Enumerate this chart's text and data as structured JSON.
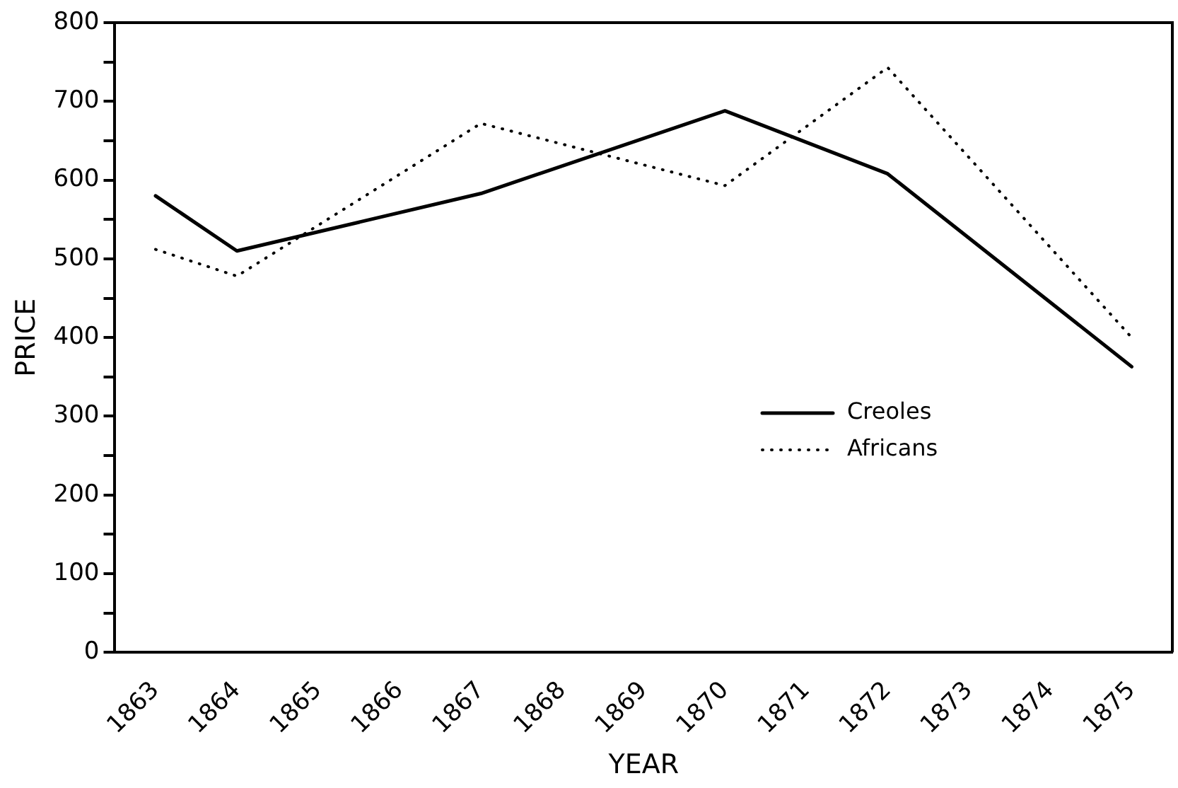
{
  "chart_data": {
    "type": "line",
    "xlabel": "YEAR",
    "ylabel": "PRICE",
    "xlim": [
      1862.5,
      1875.5
    ],
    "xticks": [
      1863,
      1864,
      1865,
      1866,
      1867,
      1868,
      1869,
      1870,
      1871,
      1872,
      1873,
      1874,
      1875
    ],
    "ylim": [
      0,
      800
    ],
    "yticks": [
      0,
      {
        "value": 50,
        "label": null
      },
      100,
      {
        "value": 150,
        "label": null
      },
      200,
      {
        "value": 250,
        "label": null
      },
      300,
      {
        "value": 350,
        "label": null
      },
      400,
      {
        "value": 450,
        "label": null
      },
      500,
      {
        "value": 550,
        "label": null
      },
      600,
      {
        "value": 650,
        "label": null
      },
      700,
      {
        "value": 750,
        "label": null
      },
      800
    ],
    "grid": false,
    "legend": "right",
    "marker": "none",
    "series": [
      {
        "name": "Creoles",
        "color": "#000000",
        "line_style": "solid",
        "x": [
          1863,
          1864,
          1867,
          1870,
          1872,
          1875
        ],
        "values": [
          580,
          510,
          583,
          688,
          608,
          363
        ]
      },
      {
        "name": "Africans",
        "color": "#000000",
        "line_style": "dotted",
        "x": [
          1863,
          1864,
          1867,
          1870,
          1872,
          1875
        ],
        "values": [
          512,
          478,
          672,
          593,
          743,
          400
        ]
      }
    ]
  }
}
